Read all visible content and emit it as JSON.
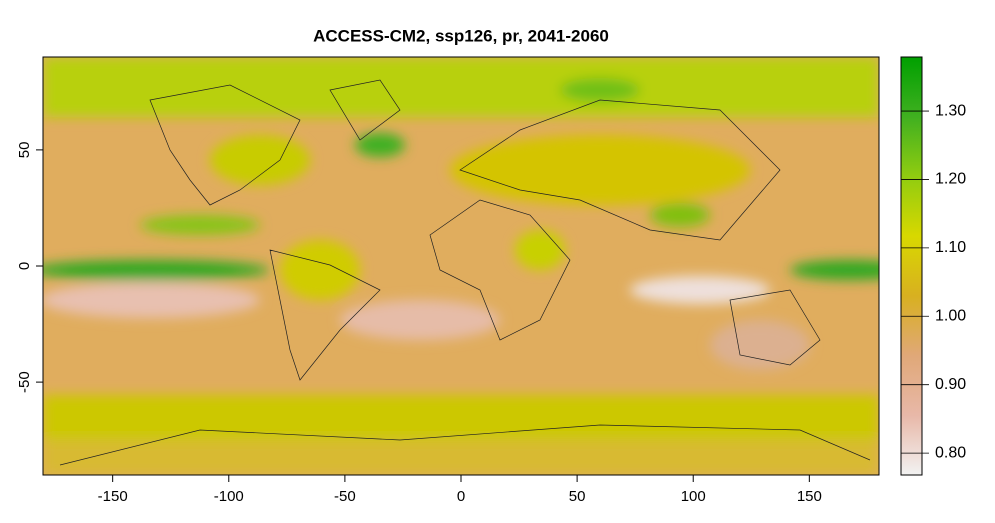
{
  "map": {
    "title": "ACCESS-CM2, ssp126, pr, 2041-2060",
    "xlim": [
      -180,
      180
    ],
    "ylim": [
      -90,
      90
    ],
    "xticks": [
      -150,
      -100,
      -50,
      0,
      50,
      100,
      150
    ],
    "yticks": [
      -50,
      0,
      50
    ],
    "colorbar": {
      "lim": [
        0.768,
        1.379
      ],
      "ticks": [
        {
          "value": 0.8,
          "label": "0.80"
        },
        {
          "value": 0.9,
          "label": "0.90"
        },
        {
          "value": 1.0,
          "label": "1.00"
        },
        {
          "value": 1.1,
          "label": "1.10"
        },
        {
          "value": 1.2,
          "label": "1.20"
        },
        {
          "value": 1.3,
          "label": "1.30"
        }
      ],
      "colors": [
        "#f2f2f2",
        "#e8b8a8",
        "#e0a878",
        "#d8b020",
        "#d8d800",
        "#90cc10",
        "#40b020",
        "#00a000"
      ]
    }
  }
}
